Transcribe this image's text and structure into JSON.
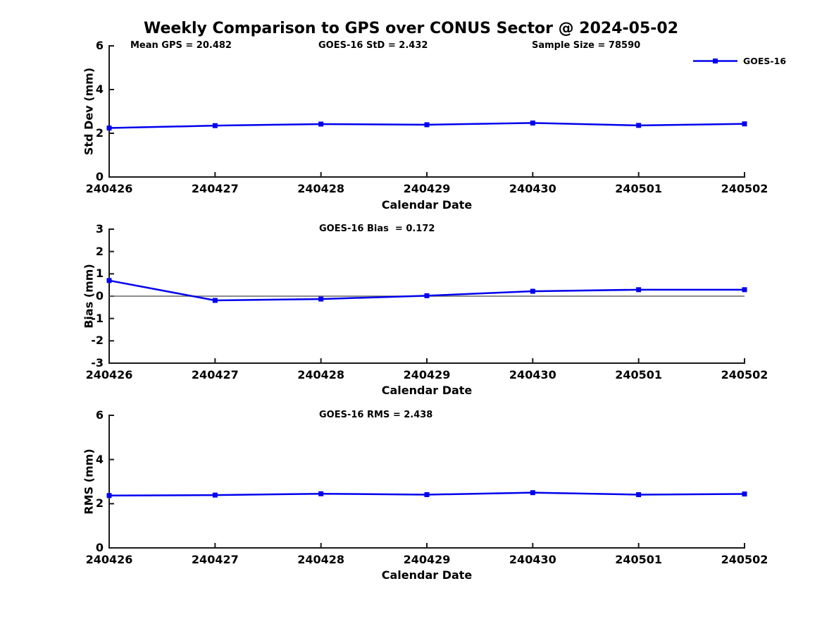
{
  "title": "Weekly Comparison to GPS over CONUS Sector @ 2024-05-02",
  "legend": {
    "label": "GOES-16",
    "color": "#0000EE",
    "marker": "filled-square"
  },
  "chart_data": {
    "type": "line",
    "series_name": "GOES-16",
    "line_color": "#0000EE",
    "axis_color": "#1a1a1a",
    "zero_line_color": "#666666",
    "categories": [
      "240426",
      "240427",
      "240428",
      "240429",
      "240430",
      "240501",
      "240502"
    ],
    "xlabel": "Calendar Date",
    "legend_position": "top-right",
    "grid": false,
    "panels": [
      {
        "ylabel": "Std Dev (mm)",
        "ylim": [
          0,
          6
        ],
        "yticks": [
          0,
          2,
          4,
          6
        ],
        "values": [
          2.24,
          2.35,
          2.42,
          2.39,
          2.47,
          2.36,
          2.43
        ],
        "zero_line": false,
        "annotations": [
          {
            "text": "Mean GPS = 20.482"
          },
          {
            "text": "GOES-16 StD = 2.432"
          },
          {
            "text": "Sample Size = 78590"
          }
        ]
      },
      {
        "ylabel": "Bias (mm)",
        "ylim": [
          -3,
          3
        ],
        "yticks": [
          3,
          2,
          1,
          0,
          -1,
          -2,
          -3
        ],
        "values": [
          0.7,
          -0.19,
          -0.13,
          0.02,
          0.22,
          0.29,
          0.29
        ],
        "zero_line": true,
        "annotations": [
          {
            "text": "GOES-16 Bias  = 0.172"
          }
        ]
      },
      {
        "ylabel": "RMS (mm)",
        "ylim": [
          0,
          6
        ],
        "yticks": [
          0,
          2,
          4,
          6
        ],
        "values": [
          2.37,
          2.39,
          2.45,
          2.41,
          2.5,
          2.41,
          2.44
        ],
        "zero_line": false,
        "annotations": [
          {
            "text": "GOES-16 RMS = 2.438"
          }
        ]
      }
    ]
  }
}
